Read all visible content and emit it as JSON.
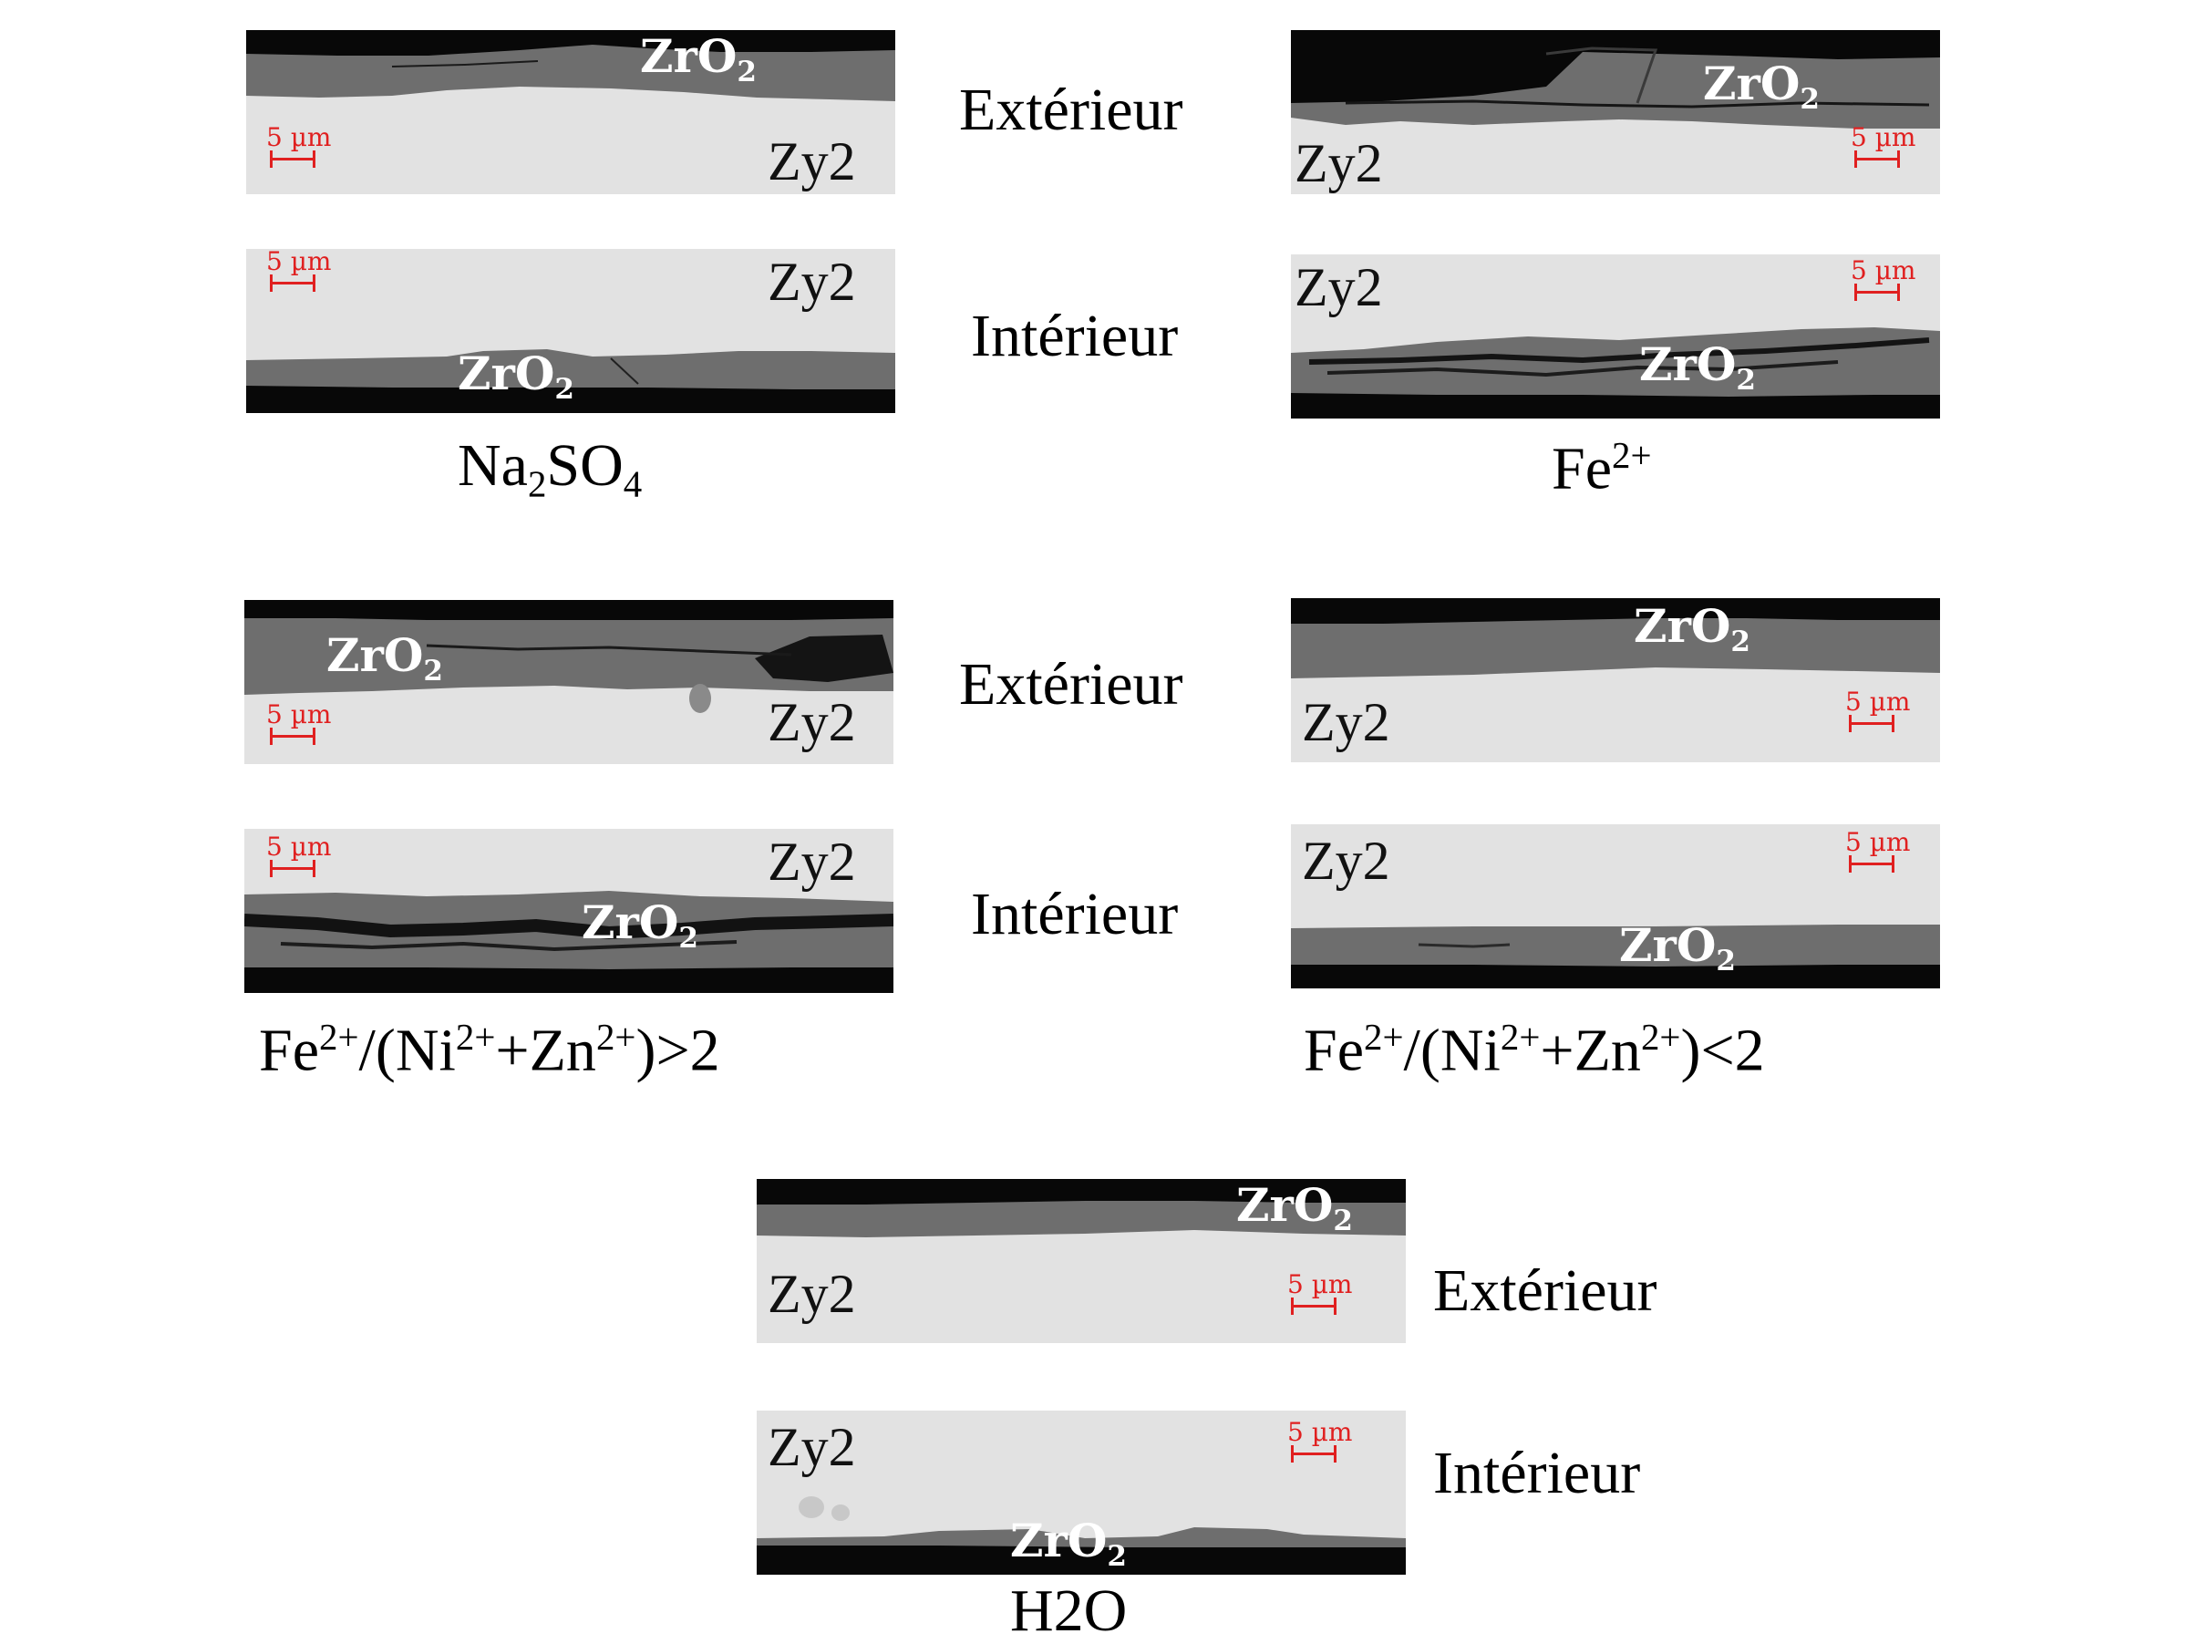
{
  "labels": {
    "oxide": "ZrO",
    "oxide_sub": "2",
    "metal": "Zy2",
    "scale": "5 µm",
    "exterior": "Extérieur",
    "interior": "Intérieur"
  },
  "captions": {
    "na2so4": {
      "a": "Na",
      "a_sub": "2",
      "b": "SO",
      "b_sub": "4"
    },
    "fe2": {
      "a": "Fe",
      "a_sup": "2+"
    },
    "ratio_gt": {
      "p1": "Fe",
      "s1": "2+",
      "p2": "/(Ni",
      "s2": "2+",
      "p3": "+Zn",
      "s3": "2+",
      "p4": ")>2"
    },
    "ratio_lt": {
      "p1": "Fe",
      "s1": "2+",
      "p2": "/(Ni",
      "s2": "2+",
      "p3": "+Zn",
      "s3": "2+",
      "p4": ")<2"
    },
    "h2o": {
      "a": "H2O"
    }
  },
  "colors": {
    "metal": "#e2e2e2",
    "oxide": "#6e6e6e",
    "background_black": "#080808",
    "scale_bar": "#e02020"
  }
}
